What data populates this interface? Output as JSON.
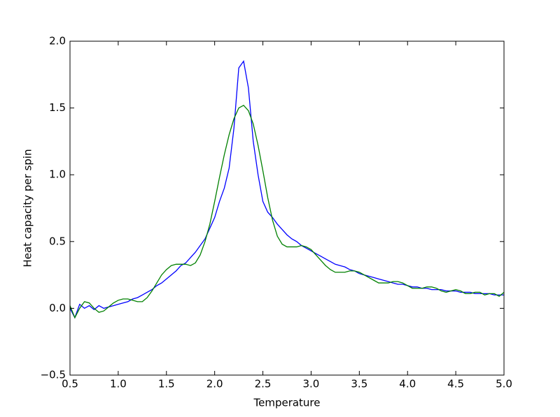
{
  "chart_data": {
    "type": "line",
    "x_label": "Temperature",
    "y_label": "Heat capacity per spin",
    "xlim": [
      0.5,
      5.0
    ],
    "ylim": [
      -0.5,
      2.0
    ],
    "xticks": [
      0.5,
      {
        "value": 1,
        "label": "1.0"
      },
      1.5,
      {
        "value": 2,
        "label": "2.0"
      },
      2.5,
      {
        "value": 3,
        "label": "3.0"
      },
      3.5,
      {
        "value": 4,
        "label": "4.0"
      },
      4.5,
      {
        "value": 5,
        "label": "5.0"
      }
    ],
    "yticks": [
      {
        "value": -0.5,
        "label": "−0.5"
      },
      {
        "value": 0,
        "label": "0.0"
      },
      0.5,
      {
        "value": 1,
        "label": "1.0"
      },
      1.5,
      {
        "value": 2,
        "label": "2.0"
      }
    ],
    "grid": false,
    "x": [
      0.5,
      0.55,
      0.6,
      0.65,
      0.7,
      0.75,
      0.8,
      0.85,
      0.9,
      0.95,
      1.0,
      1.05,
      1.1,
      1.15,
      1.2,
      1.25,
      1.3,
      1.35,
      1.4,
      1.45,
      1.5,
      1.55,
      1.6,
      1.65,
      1.7,
      1.75,
      1.8,
      1.85,
      1.9,
      1.95,
      2.0,
      2.05,
      2.1,
      2.15,
      2.2,
      2.25,
      2.3,
      2.35,
      2.4,
      2.45,
      2.5,
      2.55,
      2.6,
      2.65,
      2.7,
      2.75,
      2.8,
      2.85,
      2.9,
      2.95,
      3.0,
      3.05,
      3.1,
      3.15,
      3.2,
      3.25,
      3.3,
      3.35,
      3.4,
      3.45,
      3.5,
      3.55,
      3.6,
      3.65,
      3.7,
      3.75,
      3.8,
      3.85,
      3.9,
      3.95,
      4.0,
      4.05,
      4.1,
      4.15,
      4.2,
      4.25,
      4.3,
      4.35,
      4.4,
      4.45,
      4.5,
      4.55,
      4.6,
      4.65,
      4.7,
      4.75,
      4.8,
      4.85,
      4.9,
      4.95,
      5.0
    ],
    "series": [
      {
        "color": "#0000ff",
        "values": [
          0.0,
          -0.07,
          0.03,
          0.0,
          0.02,
          -0.01,
          0.02,
          0.0,
          0.01,
          0.02,
          0.03,
          0.04,
          0.05,
          0.07,
          0.08,
          0.1,
          0.12,
          0.14,
          0.17,
          0.19,
          0.22,
          0.25,
          0.28,
          0.32,
          0.34,
          0.38,
          0.42,
          0.47,
          0.52,
          0.6,
          0.68,
          0.8,
          0.9,
          1.05,
          1.35,
          1.8,
          1.85,
          1.65,
          1.25,
          1.0,
          0.8,
          0.72,
          0.68,
          0.63,
          0.59,
          0.55,
          0.52,
          0.5,
          0.47,
          0.45,
          0.43,
          0.41,
          0.39,
          0.37,
          0.35,
          0.33,
          0.32,
          0.31,
          0.29,
          0.28,
          0.26,
          0.25,
          0.24,
          0.23,
          0.22,
          0.21,
          0.2,
          0.19,
          0.18,
          0.18,
          0.17,
          0.16,
          0.16,
          0.15,
          0.15,
          0.14,
          0.14,
          0.14,
          0.13,
          0.13,
          0.13,
          0.12,
          0.12,
          0.12,
          0.11,
          0.11,
          0.11,
          0.11,
          0.1,
          0.1,
          0.1
        ]
      },
      {
        "color": "#008000",
        "values": [
          0.02,
          -0.07,
          0.0,
          0.05,
          0.04,
          0.0,
          -0.03,
          -0.02,
          0.01,
          0.04,
          0.06,
          0.07,
          0.07,
          0.06,
          0.05,
          0.05,
          0.08,
          0.13,
          0.19,
          0.25,
          0.29,
          0.32,
          0.33,
          0.33,
          0.33,
          0.32,
          0.34,
          0.4,
          0.5,
          0.63,
          0.8,
          0.98,
          1.15,
          1.3,
          1.42,
          1.5,
          1.52,
          1.48,
          1.38,
          1.22,
          1.03,
          0.83,
          0.66,
          0.54,
          0.48,
          0.46,
          0.46,
          0.46,
          0.47,
          0.46,
          0.44,
          0.4,
          0.36,
          0.32,
          0.29,
          0.27,
          0.27,
          0.27,
          0.28,
          0.28,
          0.27,
          0.25,
          0.23,
          0.21,
          0.19,
          0.19,
          0.19,
          0.2,
          0.2,
          0.19,
          0.17,
          0.15,
          0.15,
          0.15,
          0.16,
          0.16,
          0.15,
          0.13,
          0.12,
          0.13,
          0.14,
          0.13,
          0.11,
          0.11,
          0.12,
          0.12,
          0.1,
          0.11,
          0.11,
          0.09,
          0.12
        ]
      }
    ]
  }
}
